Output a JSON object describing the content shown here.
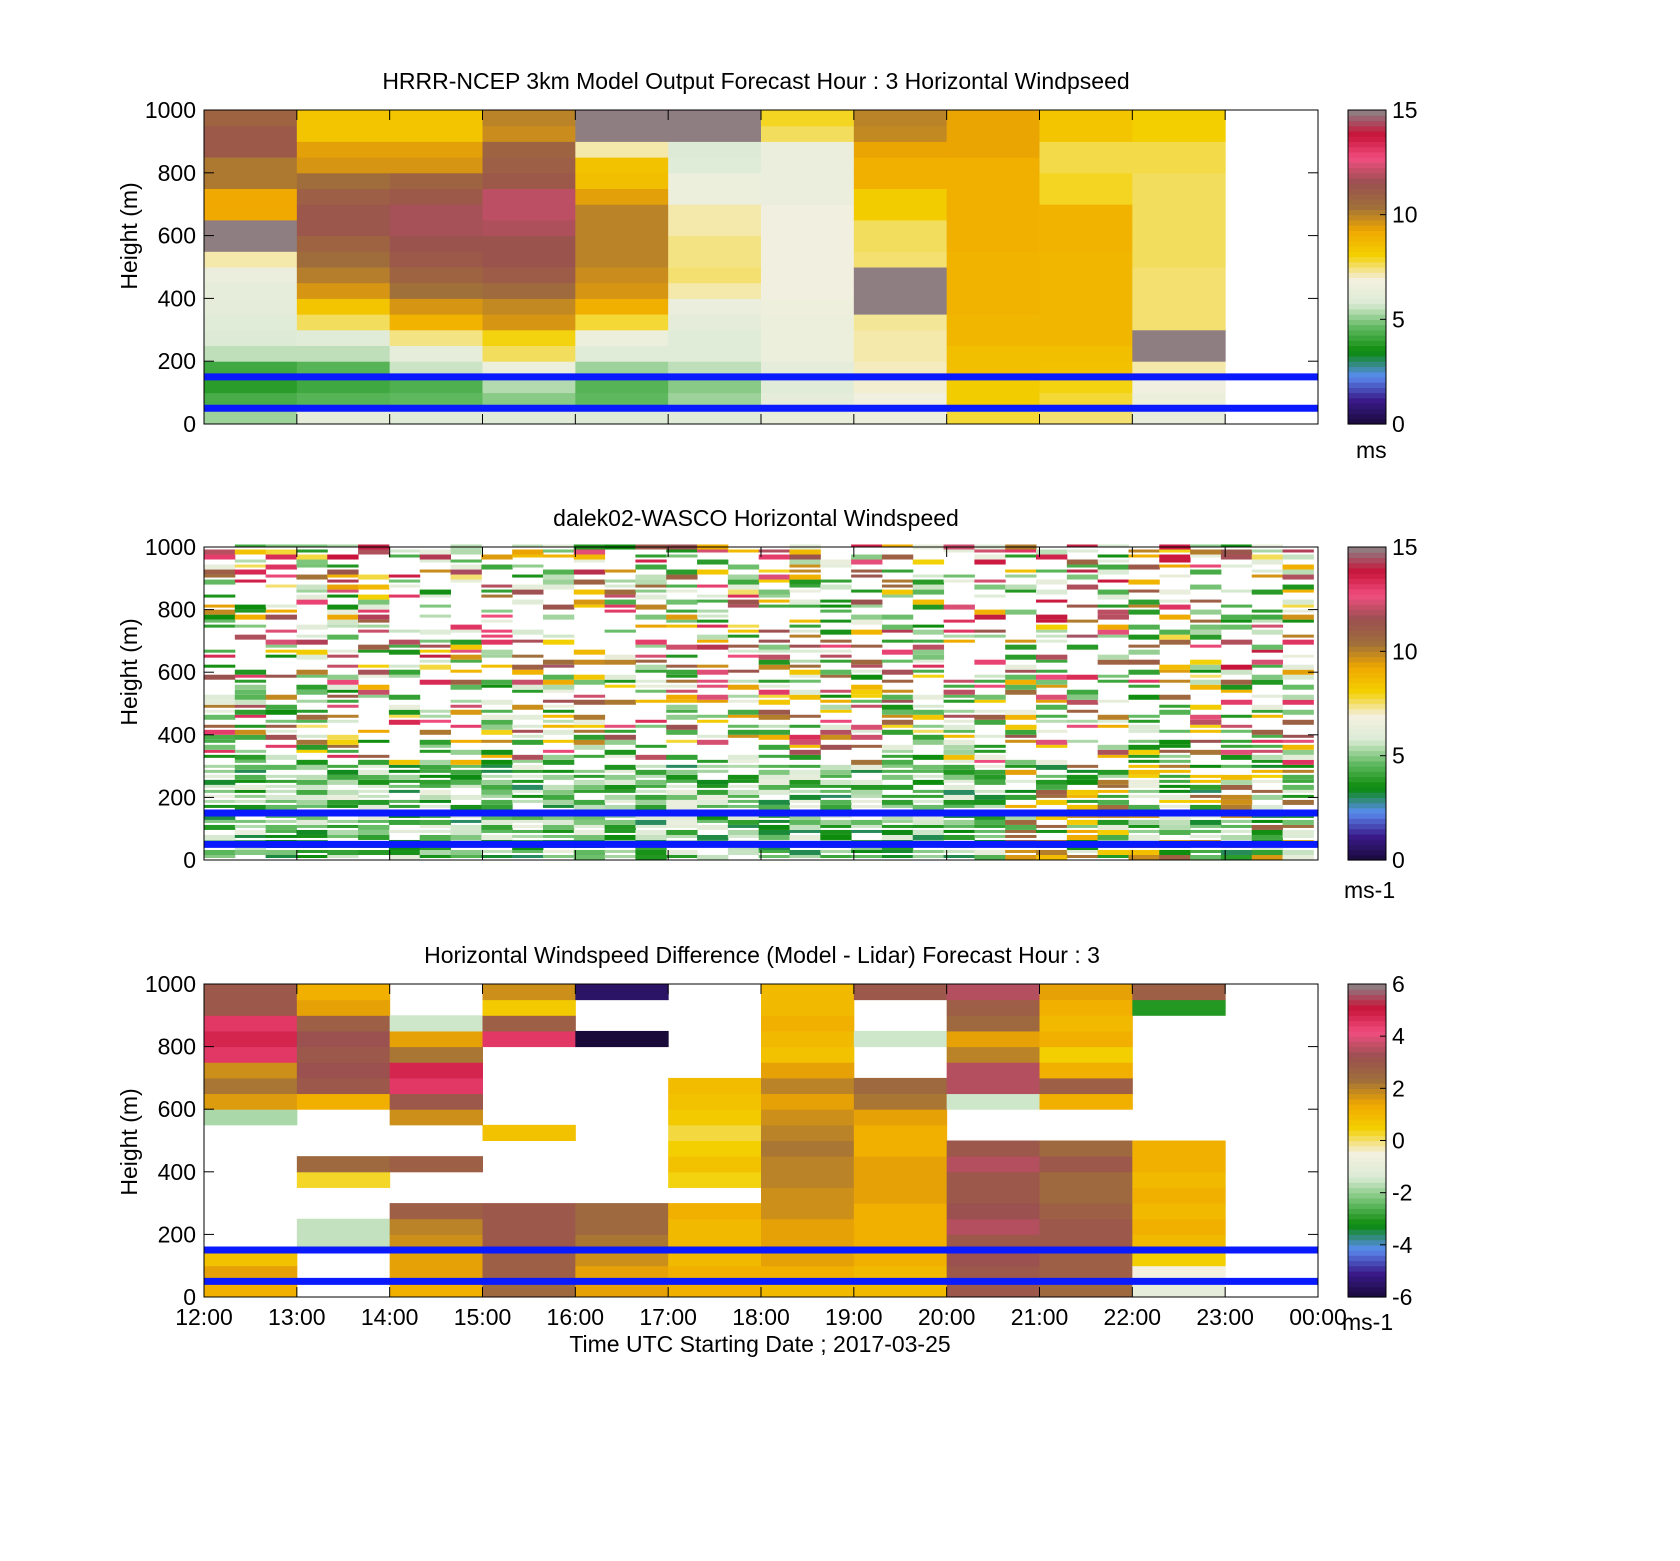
{
  "colors": {
    "ref_line": "#0a1aff",
    "speed_scale": [
      "#1a0a3a",
      "#3a1a8a",
      "#5a8cf0",
      "#0a8a0a",
      "#5fb95f",
      "#dcebd6",
      "#f4f0e0",
      "#f3d000",
      "#f0a800",
      "#a0703a",
      "#9a5050",
      "#f04e80",
      "#c8143a",
      "#888888"
    ],
    "diff_scale": [
      "#1a0a3a",
      "#3a1a8a",
      "#5a8cf0",
      "#0a8a0a",
      "#6fc06f",
      "#dcebd6",
      "#f4f0e0",
      "#f3d000",
      "#f0a800",
      "#a0703a",
      "#9a5050",
      "#f04e80",
      "#c8143a",
      "#888888"
    ]
  },
  "x_axis": {
    "ticks": [
      "12:00",
      "13:00",
      "14:00",
      "15:00",
      "16:00",
      "17:00",
      "18:00",
      "19:00",
      "20:00",
      "21:00",
      "22:00",
      "23:00",
      "00:00"
    ],
    "label": "Time UTC  Starting Date ; 2017-03-25"
  },
  "chart_data": [
    {
      "type": "heatmap",
      "title": "HRRR-NCEP 3km Model Output   Forecast Hour : 3 Horizontal Windpseed",
      "ylabel": "Height (m)",
      "ylim": [
        0,
        1000
      ],
      "yticks": [
        "0",
        "200",
        "400",
        "600",
        "800",
        "1000"
      ],
      "colorbar": {
        "ticks": [
          "0",
          "5",
          "10",
          "15"
        ],
        "range": [
          0,
          15
        ],
        "unit": "ms"
      },
      "reference_lines_m": [
        150,
        50
      ],
      "heights_m": [
        25,
        75,
        125,
        175,
        225,
        275,
        325,
        375,
        425,
        475,
        525,
        575,
        625,
        675,
        725,
        775,
        825,
        875,
        925,
        975
      ],
      "columns": [
        {
          "time": "12:00",
          "values": [
            5.2,
            4.3,
            3.9,
            4.2,
            5.5,
            5.8,
            6.0,
            6.2,
            6.3,
            6.5,
            7.2,
            14.9,
            14.9,
            9.2,
            9.2,
            10.2,
            10.2,
            11.2,
            11.2,
            10.8
          ]
        },
        {
          "time": "13:00",
          "values": [
            6.2,
            4.5,
            4.2,
            4.5,
            5.5,
            6.0,
            7.6,
            8.4,
            9.6,
            10.1,
            10.5,
            10.8,
            11.3,
            11.3,
            11.0,
            10.5,
            9.6,
            9.4,
            8.4,
            8.4
          ]
        },
        {
          "time": "14:00",
          "values": [
            6.0,
            4.6,
            4.4,
            5.6,
            6.3,
            7.4,
            8.9,
            9.6,
            10.4,
            10.8,
            11.2,
            11.4,
            11.7,
            11.7,
            11.2,
            10.8,
            9.6,
            9.4,
            8.4,
            8.4
          ]
        },
        {
          "time": "15:00",
          "values": [
            6.0,
            5.0,
            5.4,
            6.6,
            7.6,
            8.0,
            9.6,
            9.9,
            10.6,
            11.1,
            11.4,
            11.4,
            11.8,
            12.0,
            12.0,
            11.2,
            11.0,
            10.8,
            9.8,
            10.0
          ]
        },
        {
          "time": "16:00",
          "values": [
            5.8,
            4.6,
            4.5,
            5.2,
            6.0,
            6.6,
            7.8,
            9.0,
            9.6,
            9.8,
            10.0,
            10.0,
            10.0,
            10.0,
            9.4,
            8.6,
            8.5,
            7.2,
            14.9,
            14.9
          ]
        },
        {
          "time": "17:00",
          "values": [
            6.0,
            5.2,
            5.0,
            5.5,
            6.0,
            6.0,
            6.2,
            6.5,
            7.2,
            7.5,
            7.4,
            7.4,
            7.2,
            7.2,
            6.6,
            6.6,
            5.9,
            5.8,
            14.9,
            14.9
          ]
        },
        {
          "time": "18:00",
          "values": [
            6.4,
            6.2,
            6.0,
            6.2,
            6.6,
            6.6,
            6.6,
            6.7,
            6.8,
            6.8,
            6.8,
            6.8,
            6.8,
            6.8,
            6.5,
            6.5,
            6.5,
            6.5,
            7.6,
            7.9
          ]
        },
        {
          "time": "19:00",
          "values": [
            6.6,
            6.8,
            7.0,
            7.1,
            7.2,
            7.2,
            7.3,
            14.9,
            14.9,
            14.9,
            7.5,
            7.6,
            7.6,
            8.2,
            8.2,
            9.0,
            9.0,
            9.3,
            9.9,
            10.0
          ]
        },
        {
          "time": "20:00",
          "values": [
            7.8,
            8.2,
            8.2,
            8.6,
            8.6,
            8.8,
            8.8,
            8.9,
            8.9,
            8.9,
            8.9,
            9.0,
            9.0,
            9.0,
            9.0,
            9.0,
            9.0,
            9.3,
            9.3,
            9.3
          ]
        },
        {
          "time": "21:00",
          "values": [
            7.5,
            7.8,
            8.0,
            8.5,
            8.6,
            8.8,
            8.8,
            8.8,
            8.8,
            8.8,
            8.8,
            8.9,
            8.9,
            8.9,
            7.9,
            7.9,
            7.7,
            7.7,
            8.4,
            8.4
          ]
        },
        {
          "time": "22:00",
          "values": [
            6.3,
            6.6,
            6.8,
            7.2,
            14.9,
            14.9,
            7.5,
            7.5,
            7.5,
            7.5,
            7.6,
            7.6,
            7.6,
            7.6,
            7.6,
            7.6,
            7.7,
            7.7,
            8.1,
            8.1
          ]
        }
      ]
    },
    {
      "type": "heatmap",
      "title": "dalek02-WASCO  Horizontal Windspeed",
      "ylabel": "Height (m)",
      "ylim": [
        0,
        1000
      ],
      "yticks": [
        "0",
        "200",
        "400",
        "600",
        "800",
        "1000"
      ],
      "colorbar": {
        "ticks": [
          "0",
          "5",
          "10",
          "15"
        ],
        "range": [
          0,
          15
        ],
        "unit": "ms-1"
      },
      "reference_lines_m": [
        150,
        50
      ],
      "summary": "Lidar profiles every ~20 min 12:00–23:40; mostly 3–7 m/s near surface (greens), patchy 8–14 m/s above 400 m, gaps (white) where no data."
    },
    {
      "type": "heatmap",
      "title": "Horizontal Windspeed Difference (Model - Lidar) Forecast Hour : 3",
      "ylabel": "Height (m)",
      "ylim": [
        0,
        1000
      ],
      "yticks": [
        "0",
        "200",
        "400",
        "600",
        "800",
        "1000"
      ],
      "colorbar": {
        "ticks": [
          "-6",
          "-4",
          "-2",
          "0",
          "2",
          "4",
          "6"
        ],
        "range": [
          -6,
          6
        ],
        "unit": "ms-1"
      },
      "reference_lines_m": [
        150,
        50
      ],
      "heights_m": [
        25,
        75,
        125,
        175,
        225,
        275,
        325,
        375,
        425,
        475,
        525,
        575,
        625,
        675,
        725,
        775,
        825,
        875,
        925,
        975
      ],
      "columns": [
        {
          "time": "12:00",
          "values": [
            1.2,
            1.5,
            0.8,
            null,
            null,
            null,
            null,
            null,
            null,
            null,
            null,
            -1.8,
            1.6,
            2.2,
            1.8,
            4.5,
            4.8,
            4.5,
            3.0,
            3.0
          ]
        },
        {
          "time": "13:00",
          "values": [
            null,
            null,
            null,
            -1.6,
            -1.6,
            null,
            null,
            0.3,
            2.5,
            null,
            null,
            null,
            1.2,
            3.0,
            3.2,
            3.0,
            3.2,
            2.8,
            1.5,
            1.2
          ]
        },
        {
          "time": "14:00",
          "values": [
            1.2,
            1.5,
            1.5,
            1.8,
            2.0,
            2.8,
            null,
            null,
            2.8,
            null,
            null,
            1.8,
            3.0,
            4.5,
            4.8,
            2.2,
            1.5,
            -1.5,
            null,
            null
          ]
        },
        {
          "time": "15:00",
          "values": [
            2.5,
            2.8,
            2.8,
            3.0,
            3.0,
            3.0,
            null,
            null,
            null,
            null,
            0.8,
            null,
            null,
            null,
            null,
            null,
            4.5,
            2.8,
            0.6,
            1.8
          ]
        },
        {
          "time": "16:00",
          "values": [
            1.5,
            1.5,
            1.8,
            2.2,
            2.5,
            2.5,
            null,
            null,
            null,
            null,
            null,
            null,
            null,
            null,
            null,
            null,
            -6.0,
            null,
            null,
            -5.5
          ]
        },
        {
          "time": "17:00",
          "values": [
            1.2,
            1.2,
            1.0,
            1.0,
            1.0,
            1.2,
            null,
            0.4,
            0.8,
            0.5,
            0.2,
            0.6,
            0.8,
            0.9,
            null,
            null,
            null,
            null,
            null,
            null
          ]
        },
        {
          "time": "18:00",
          "values": [
            1.0,
            1.2,
            1.5,
            1.5,
            1.5,
            1.8,
            1.8,
            2.0,
            2.0,
            2.2,
            2.0,
            1.8,
            1.5,
            2.0,
            1.5,
            0.8,
            1.0,
            1.2,
            1.0,
            1.0
          ]
        },
        {
          "time": "19:00",
          "values": [
            1.0,
            1.0,
            1.2,
            1.2,
            1.2,
            1.2,
            1.5,
            1.5,
            1.5,
            1.2,
            1.2,
            1.5,
            2.2,
            2.5,
            null,
            null,
            -1.5,
            null,
            null,
            3.0
          ]
        },
        {
          "time": "20:00",
          "values": [
            3.0,
            3.0,
            3.2,
            3.0,
            3.5,
            3.2,
            3.0,
            3.0,
            3.5,
            3.0,
            null,
            null,
            -1.5,
            3.5,
            3.5,
            2.0,
            1.5,
            2.5,
            2.8,
            3.5
          ]
        },
        {
          "time": "21:00",
          "values": [
            2.5,
            2.8,
            2.8,
            3.0,
            3.0,
            2.8,
            2.5,
            2.5,
            3.0,
            2.5,
            null,
            null,
            1.2,
            2.8,
            1.2,
            0.5,
            1.2,
            1.0,
            1.2,
            1.5
          ]
        },
        {
          "time": "22:00",
          "values": [
            -1.0,
            -0.5,
            0.5,
            1.0,
            1.2,
            1.0,
            1.2,
            1.0,
            1.2,
            1.2,
            null,
            null,
            null,
            null,
            null,
            null,
            null,
            null,
            -3.0,
            2.8
          ]
        }
      ]
    }
  ]
}
